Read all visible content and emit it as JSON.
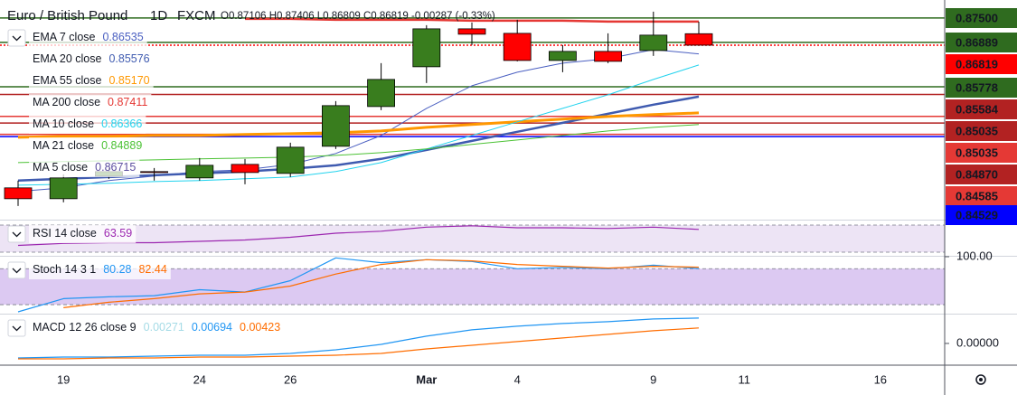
{
  "chart_data": [
    {
      "type": "candlestick",
      "title": "Euro / British Pound",
      "interval": "1D",
      "exchange": "FXCM",
      "header_values": "O0.87106 H0.87406 L0.86809 C0.86819 -0.00287 (-0.33%)",
      "open": [
        0.83246,
        0.82974,
        0.8354,
        0.83653,
        0.83495,
        0.83834,
        0.83608,
        0.84287,
        0.85282,
        0.86278,
        0.87228,
        0.87115,
        0.86436,
        0.86663,
        0.86685,
        0.87106,
        null,
        null,
        null,
        null,
        null
      ],
      "high": [
        0.83427,
        0.83585,
        0.83743,
        0.83743,
        0.83992,
        0.8397,
        0.84377,
        0.85418,
        0.86369,
        0.87319,
        0.87387,
        0.87455,
        0.86821,
        0.87115,
        0.87658,
        0.87406,
        null,
        null,
        null,
        null,
        null
      ],
      "low": [
        0.82793,
        0.82884,
        0.83472,
        0.83427,
        0.83427,
        0.83336,
        0.83517,
        0.84219,
        0.85192,
        0.85871,
        0.86821,
        0.86414,
        0.86142,
        0.86369,
        0.8655,
        0.86809,
        null,
        null,
        null,
        null,
        null
      ],
      "close": [
        0.82974,
        0.83495,
        0.83653,
        0.8363,
        0.83811,
        0.8363,
        0.84264,
        0.85305,
        0.85961,
        0.87228,
        0.87093,
        0.86436,
        0.86663,
        0.86414,
        0.8707,
        0.86819,
        null,
        null,
        null,
        null,
        null
      ],
      "up_color": "#397d1e",
      "down_color": "#ff0000",
      "wick_color": "#000000",
      "ylim": [
        0.8245,
        0.8795
      ],
      "levels": [
        {
          "value": 0.875,
          "label": "0.87500",
          "color": "#2f6b1f"
        },
        {
          "value": 0.86889,
          "label": "0.86889",
          "color": "#2f6b1f"
        },
        {
          "value": 0.86819,
          "label": "0.86819",
          "color": "#ff0000"
        },
        {
          "value": 0.85778,
          "label": "0.85778",
          "color": "#2f6b1f"
        },
        {
          "value": 0.85584,
          "label": "0.85584",
          "color": "#b22222"
        },
        {
          "value": 0.85035,
          "label": "0.85035",
          "color": "#b22222"
        },
        {
          "value": 0.85035,
          "label": "0.85035",
          "color": "#e53935"
        },
        {
          "value": 0.8487,
          "label": "0.84870",
          "color": "#b22222"
        },
        {
          "value": 0.84585,
          "label": "0.84585",
          "color": "#e53935"
        },
        {
          "value": 0.84529,
          "label": "0.84529",
          "color": "#0000ff"
        }
      ],
      "series": [
        {
          "name": "EMA 7 close",
          "value_label": "0.86535",
          "color": "#4a5fc1",
          "values": [
            0.83155,
            0.83246,
            0.83427,
            0.8354,
            0.83653,
            0.83698,
            0.83834,
            0.84106,
            0.84558,
            0.85237,
            0.85803,
            0.86142,
            0.86369,
            0.86482,
            0.86708,
            0.866,
            null,
            null,
            null,
            null,
            null
          ]
        },
        {
          "name": "EMA 20 close",
          "value_label": "0.85576",
          "color": "#3f5bb0",
          "values": [
            0.83427,
            0.83472,
            0.83517,
            0.83562,
            0.83608,
            0.83653,
            0.83721,
            0.83811,
            0.8397,
            0.84196,
            0.84422,
            0.84649,
            0.84875,
            0.85101,
            0.85328,
            0.85531,
            null,
            null,
            null,
            null,
            null
          ]
        },
        {
          "name": "EMA 55 close",
          "value_label": "0.85170",
          "color": "#ff9800",
          "values": [
            0.84513,
            0.84535,
            0.84535,
            0.84558,
            0.84558,
            0.84581,
            0.84603,
            0.84626,
            0.84671,
            0.84762,
            0.8483,
            0.84898,
            0.84966,
            0.85033,
            0.85079,
            0.85124,
            null,
            null,
            null,
            null,
            null
          ]
        },
        {
          "name": "MA 200 close",
          "value_label": "0.87411",
          "color": "#e53935",
          "values": [
            null,
            null,
            null,
            null,
            null,
            0.87477,
            0.87477,
            0.87455,
            0.87455,
            0.87455,
            0.87432,
            0.87432,
            0.87432,
            0.87409,
            0.87409,
            0.87409,
            null,
            null,
            null,
            null,
            null
          ]
        },
        {
          "name": "MA 10 close",
          "value_label": "0.86366",
          "color": "#22d3ee",
          "values": [
            0.83313,
            0.83336,
            0.83359,
            0.83404,
            0.83427,
            0.83472,
            0.83517,
            0.83653,
            0.83879,
            0.84219,
            0.84558,
            0.84898,
            0.85237,
            0.85576,
            0.85961,
            0.86323,
            null,
            null,
            null,
            null,
            null
          ]
        },
        {
          "name": "MA 21 close",
          "value_label": "0.84889",
          "color": "#4cc235",
          "values": [
            0.83879,
            0.83902,
            0.83924,
            0.83947,
            0.8397,
            0.83992,
            0.84015,
            0.8406,
            0.84128,
            0.84219,
            0.84332,
            0.84445,
            0.84558,
            0.84671,
            0.84762,
            0.8483,
            null,
            null,
            null,
            null,
            null
          ]
        },
        {
          "name": "MA 5 close",
          "value_label": "0.86715",
          "color": "#5c4ea0"
        }
      ]
    },
    {
      "type": "line",
      "series": [
        {
          "name": "RSI 14 close",
          "value_label": "63.59",
          "color": "#9c27b0",
          "values": [
            40,
            43,
            44,
            44,
            46,
            48,
            52,
            58,
            61,
            67,
            69,
            66,
            66,
            65,
            67,
            63.59,
            null,
            null,
            null,
            null,
            null
          ]
        }
      ],
      "ylim": [
        24.67,
        76.67
      ],
      "band": [
        30,
        70
      ],
      "band_color": "#ede4f5"
    },
    {
      "type": "line",
      "title": "Stoch 14 3 1",
      "series": [
        {
          "value_label": "80.28",
          "color": "#2196f3",
          "values": [
            8,
            30,
            33,
            35,
            45,
            41,
            60,
            98,
            90,
            95,
            92,
            80,
            82,
            80,
            86,
            80.28,
            null,
            null,
            null,
            null,
            null
          ]
        },
        {
          "value_label": "82.44",
          "color": "#ff6d00",
          "values": [
            null,
            15,
            24,
            30,
            38,
            41,
            51,
            71,
            87,
            95,
            93,
            87,
            84,
            81,
            84,
            82.44,
            null,
            null,
            null,
            null,
            null
          ]
        }
      ],
      "ylim": [
        5,
        100
      ],
      "yticks": [
        {
          "value": 100,
          "label": "100.00"
        }
      ],
      "band": [
        20,
        80
      ],
      "band_color": "#dcc9f2"
    },
    {
      "type": "line",
      "title": "MACD 12 26 close 9",
      "histogram_label": "0.00271",
      "histogram_color": "#a5dbe6",
      "series": [
        {
          "value_label": "0.00694",
          "color": "#2196f3",
          "values": [
            -0.00397,
            -0.00372,
            -0.00372,
            -0.00347,
            -0.00322,
            -0.00322,
            -0.00273,
            -0.00174,
            -0.00025,
            0.00198,
            0.00372,
            0.00471,
            0.00546,
            0.00595,
            0.0067,
            0.00694,
            null,
            null,
            null,
            null,
            null
          ]
        },
        {
          "value_label": "0.00423",
          "color": "#ff6d00",
          "values": [
            -0.00422,
            -0.00422,
            -0.00397,
            -0.00397,
            -0.00372,
            -0.00372,
            -0.00347,
            -0.00322,
            -0.00273,
            -0.00149,
            -0.0005,
            0.0005,
            0.00149,
            0.00248,
            0.00347,
            0.00423,
            null,
            null,
            null,
            null,
            null
          ]
        }
      ],
      "ylim": [
        -0.0057,
        0.0079
      ],
      "yticks": [
        {
          "value": 0,
          "label": "0.00000"
        }
      ],
      "categories": [
        null,
        "19",
        null,
        null,
        "24",
        null,
        "26",
        null,
        null,
        "Mar",
        null,
        "4",
        null,
        null,
        "9",
        null,
        "11",
        null,
        null,
        "16",
        null
      ]
    }
  ]
}
